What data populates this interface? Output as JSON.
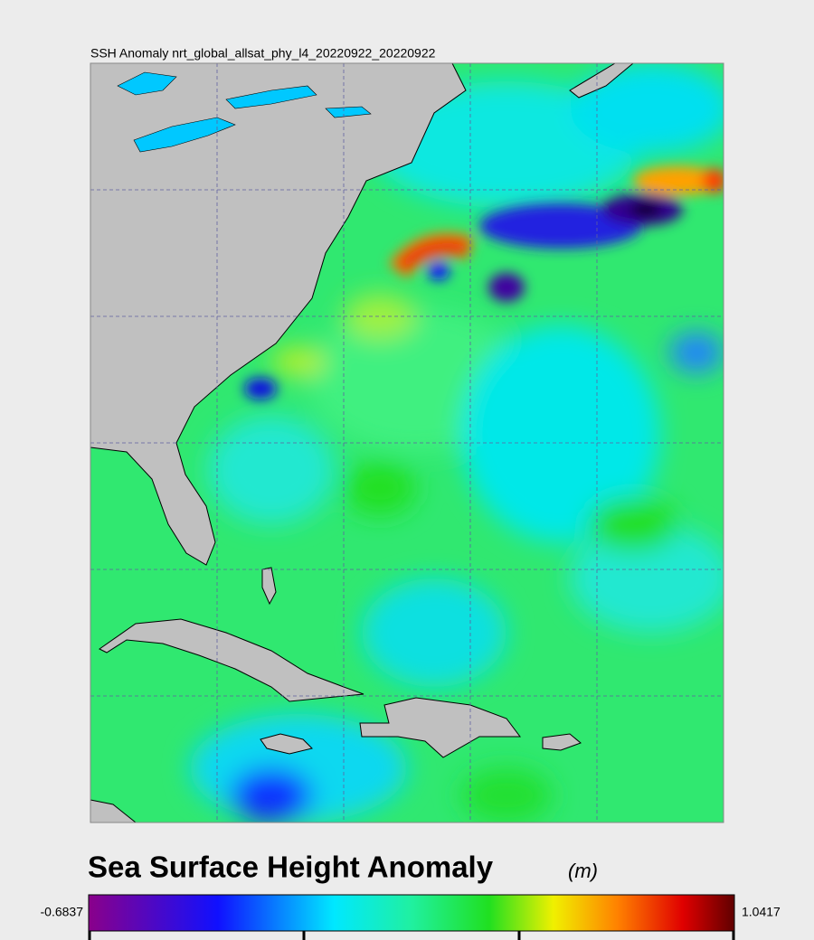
{
  "map": {
    "title": "SSH Anomaly nrt_global_allsat_phy_l4_20220922_20220922"
  },
  "colorbar": {
    "title": "Sea Surface Height Anomaly",
    "units": "(m)",
    "min": -0.6837,
    "max": 1.0417
  }
}
